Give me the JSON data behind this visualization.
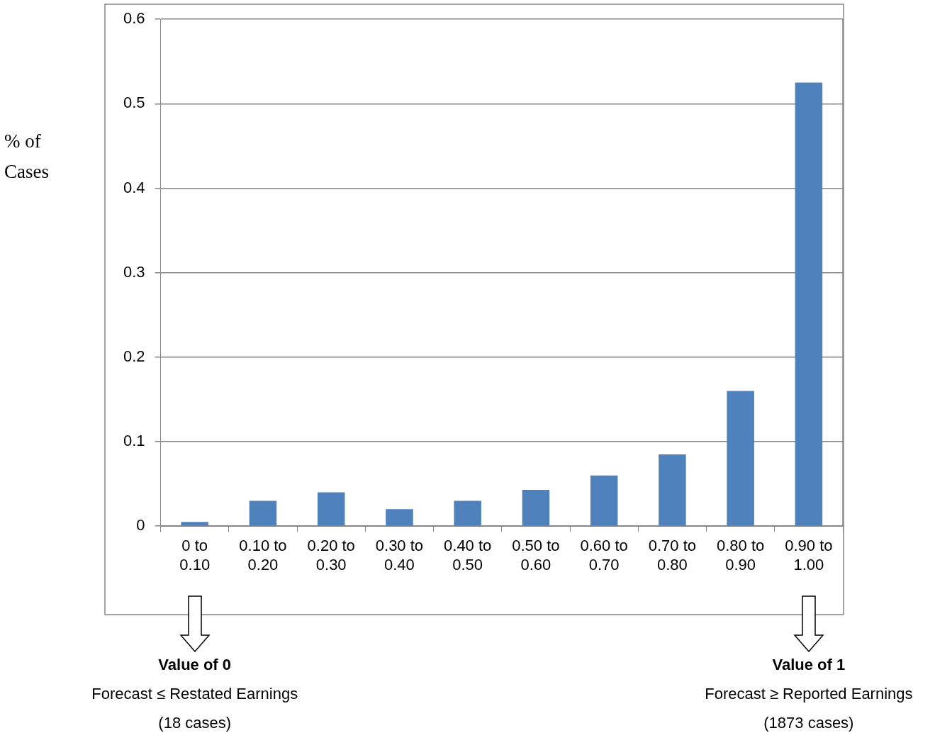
{
  "chart_data": {
    "type": "bar",
    "ylabel": "% of Cases",
    "categories": [
      "0 to 0.10",
      "0.10 to 0.20",
      "0.20 to 0.30",
      "0.30 to 0.40",
      "0.40 to 0.50",
      "0.50 to 0.60",
      "0.60 to 0.70",
      "0.70 to 0.80",
      "0.80 to 0.90",
      "0.90 to 1.00"
    ],
    "values": [
      0.005,
      0.03,
      0.04,
      0.02,
      0.03,
      0.043,
      0.06,
      0.085,
      0.16,
      0.525
    ],
    "color": "#4f81bd",
    "ylim": [
      0,
      0.6
    ],
    "yticks": [
      0,
      0.1,
      0.2,
      0.3,
      0.4,
      0.5,
      0.6
    ],
    "grid": "y",
    "legend": false,
    "annotations": [
      "Value of 0\nForecast ≤ Restated Earnings\n(18 cases)",
      "Value of 1\nForecast ≥ Reported Earnings\n(1873 cases)"
    ]
  }
}
